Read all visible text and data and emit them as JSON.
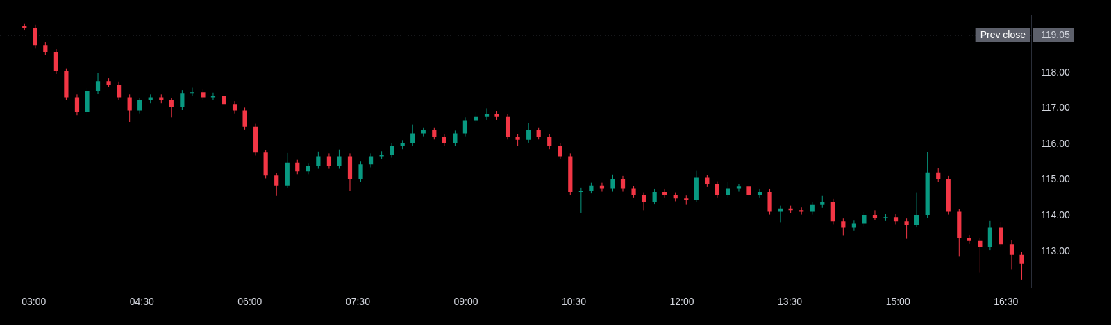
{
  "chart_data": {
    "type": "candlestick",
    "x": [
      2.87,
      3.02,
      3.16,
      3.31,
      3.45,
      3.6,
      3.74,
      3.89,
      4.04,
      4.18,
      4.33,
      4.47,
      4.62,
      4.77,
      4.91,
      5.06,
      5.2,
      5.35,
      5.49,
      5.64,
      5.79,
      5.93,
      6.08,
      6.22,
      6.37,
      6.52,
      6.66,
      6.81,
      6.95,
      7.1,
      7.24,
      7.39,
      7.54,
      7.68,
      7.83,
      7.97,
      8.12,
      8.26,
      8.41,
      8.56,
      8.7,
      8.85,
      8.99,
      9.14,
      9.29,
      9.43,
      9.58,
      9.72,
      9.87,
      10.01,
      10.16,
      10.31,
      10.45,
      10.6,
      10.74,
      10.89,
      11.04,
      11.18,
      11.33,
      11.47,
      11.62,
      11.76,
      11.91,
      12.06,
      12.2,
      12.35,
      12.49,
      12.64,
      12.79,
      12.93,
      13.08,
      13.22,
      13.37,
      13.51,
      13.66,
      13.81,
      13.95,
      14.1,
      14.24,
      14.39,
      14.53,
      14.68,
      14.83,
      14.97,
      15.12,
      15.26,
      15.41,
      15.56,
      15.7,
      15.85,
      15.99,
      16.14,
      16.28,
      16.43,
      16.58,
      16.72
    ],
    "ohlc": [
      [
        119.3,
        119.38,
        119.18,
        119.26
      ],
      [
        119.26,
        119.34,
        118.69,
        118.77
      ],
      [
        118.77,
        118.85,
        118.5,
        118.58
      ],
      [
        118.58,
        118.66,
        117.96,
        118.04
      ],
      [
        118.04,
        118.12,
        117.23,
        117.31
      ],
      [
        117.31,
        117.39,
        116.81,
        116.89
      ],
      [
        116.89,
        117.57,
        116.81,
        117.49
      ],
      [
        117.49,
        117.98,
        117.41,
        117.76
      ],
      [
        117.76,
        117.84,
        117.59,
        117.67
      ],
      [
        117.67,
        117.75,
        117.23,
        117.31
      ],
      [
        117.31,
        117.39,
        116.62,
        116.94
      ],
      [
        116.94,
        117.3,
        116.86,
        117.22
      ],
      [
        117.22,
        117.39,
        117.14,
        117.31
      ],
      [
        117.31,
        117.39,
        117.14,
        117.22
      ],
      [
        117.22,
        117.3,
        116.75,
        117.03
      ],
      [
        117.03,
        117.51,
        116.95,
        117.43
      ],
      [
        117.43,
        117.58,
        117.35,
        117.45
      ],
      [
        117.45,
        117.53,
        117.23,
        117.31
      ],
      [
        117.31,
        117.44,
        117.23,
        117.36
      ],
      [
        117.36,
        117.44,
        117.04,
        117.12
      ],
      [
        117.12,
        117.2,
        116.86,
        116.94
      ],
      [
        116.94,
        117.02,
        116.41,
        116.49
      ],
      [
        116.49,
        116.57,
        115.68,
        115.76
      ],
      [
        115.76,
        115.84,
        115.04,
        115.12
      ],
      [
        115.12,
        115.2,
        114.55,
        114.84
      ],
      [
        114.84,
        115.75,
        114.76,
        115.48
      ],
      [
        115.48,
        115.56,
        115.16,
        115.24
      ],
      [
        115.24,
        115.47,
        115.16,
        115.39
      ],
      [
        115.39,
        115.79,
        115.31,
        115.66
      ],
      [
        115.66,
        115.74,
        115.31,
        115.39
      ],
      [
        115.39,
        115.85,
        115.31,
        115.66
      ],
      [
        115.66,
        115.74,
        114.7,
        115.03
      ],
      [
        115.03,
        115.51,
        114.95,
        115.43
      ],
      [
        115.43,
        115.74,
        115.35,
        115.66
      ],
      [
        115.66,
        115.8,
        115.58,
        115.7
      ],
      [
        115.7,
        116.02,
        115.62,
        115.94
      ],
      [
        115.94,
        116.11,
        115.86,
        116.03
      ],
      [
        116.03,
        116.55,
        115.95,
        116.3
      ],
      [
        116.3,
        116.47,
        116.22,
        116.39
      ],
      [
        116.39,
        116.47,
        116.13,
        116.21
      ],
      [
        116.21,
        116.29,
        115.95,
        116.03
      ],
      [
        116.03,
        116.38,
        115.95,
        116.3
      ],
      [
        116.3,
        116.75,
        116.22,
        116.67
      ],
      [
        116.67,
        116.9,
        116.59,
        116.76
      ],
      [
        116.76,
        117.0,
        116.68,
        116.85
      ],
      [
        116.85,
        116.93,
        116.68,
        116.76
      ],
      [
        116.76,
        116.84,
        116.13,
        116.21
      ],
      [
        116.21,
        116.29,
        115.95,
        116.12
      ],
      [
        116.12,
        116.6,
        116.04,
        116.39
      ],
      [
        116.39,
        116.47,
        116.13,
        116.21
      ],
      [
        116.21,
        116.29,
        115.86,
        115.94
      ],
      [
        115.94,
        116.02,
        115.58,
        115.66
      ],
      [
        115.66,
        115.74,
        114.58,
        114.66
      ],
      [
        114.66,
        114.78,
        114.08,
        114.7
      ],
      [
        114.7,
        114.92,
        114.62,
        114.84
      ],
      [
        114.84,
        114.92,
        114.67,
        114.75
      ],
      [
        114.75,
        115.15,
        114.67,
        115.03
      ],
      [
        115.03,
        115.11,
        114.67,
        114.75
      ],
      [
        114.75,
        114.83,
        114.49,
        114.57
      ],
      [
        114.57,
        114.65,
        114.15,
        114.39
      ],
      [
        114.39,
        114.74,
        114.31,
        114.66
      ],
      [
        114.66,
        114.74,
        114.49,
        114.57
      ],
      [
        114.57,
        114.65,
        114.4,
        114.48
      ],
      [
        114.48,
        114.56,
        114.3,
        114.45
      ],
      [
        114.45,
        115.25,
        114.37,
        115.06
      ],
      [
        115.06,
        115.14,
        114.8,
        114.88
      ],
      [
        114.88,
        114.96,
        114.49,
        114.57
      ],
      [
        114.57,
        114.95,
        114.49,
        114.75
      ],
      [
        114.75,
        114.89,
        114.67,
        114.81
      ],
      [
        114.81,
        114.89,
        114.49,
        114.57
      ],
      [
        114.57,
        114.74,
        114.49,
        114.66
      ],
      [
        114.66,
        114.74,
        114.03,
        114.11
      ],
      [
        114.11,
        114.28,
        113.8,
        114.2
      ],
      [
        114.2,
        114.28,
        114.07,
        114.15
      ],
      [
        114.15,
        114.23,
        114.03,
        114.11
      ],
      [
        114.11,
        114.38,
        114.03,
        114.3
      ],
      [
        114.3,
        114.55,
        114.22,
        114.39
      ],
      [
        114.39,
        114.47,
        113.76,
        113.84
      ],
      [
        113.84,
        113.92,
        113.45,
        113.66
      ],
      [
        113.66,
        113.86,
        113.58,
        113.78
      ],
      [
        113.78,
        114.1,
        113.7,
        114.02
      ],
      [
        114.02,
        114.15,
        113.88,
        113.93
      ],
      [
        113.93,
        114.04,
        113.85,
        113.96
      ],
      [
        113.96,
        114.04,
        113.76,
        113.84
      ],
      [
        113.84,
        113.92,
        113.35,
        113.75
      ],
      [
        113.75,
        114.65,
        113.67,
        114.02
      ],
      [
        114.02,
        115.78,
        113.94,
        115.21
      ],
      [
        115.21,
        115.32,
        114.95,
        115.03
      ],
      [
        115.03,
        115.11,
        114.03,
        114.11
      ],
      [
        114.11,
        114.19,
        112.85,
        113.38
      ],
      [
        113.38,
        113.46,
        113.21,
        113.29
      ],
      [
        113.29,
        113.37,
        112.4,
        113.11
      ],
      [
        113.11,
        113.85,
        113.03,
        113.66
      ],
      [
        113.66,
        113.82,
        113.12,
        113.2
      ],
      [
        113.2,
        113.32,
        112.5,
        112.9
      ],
      [
        112.9,
        112.98,
        112.2,
        112.65
      ]
    ],
    "colors": [
      "#f23645",
      "#f23645",
      "#f23645",
      "#f23645",
      "#f23645",
      "#f23645",
      "#089981",
      "#089981",
      "#f23645",
      "#f23645",
      "#f23645",
      "#089981",
      "#089981",
      "#f23645",
      "#f23645",
      "#089981",
      "#089981",
      "#f23645",
      "#089981",
      "#f23645",
      "#f23645",
      "#f23645",
      "#f23645",
      "#f23645",
      "#f23645",
      "#089981",
      "#f23645",
      "#089981",
      "#089981",
      "#f23645",
      "#089981",
      "#f23645",
      "#089981",
      "#089981",
      "#089981",
      "#089981",
      "#089981",
      "#089981",
      "#089981",
      "#f23645",
      "#f23645",
      "#089981",
      "#089981",
      "#089981",
      "#089981",
      "#f23645",
      "#f23645",
      "#f23645",
      "#089981",
      "#f23645",
      "#f23645",
      "#f23645",
      "#f23645",
      "#089981",
      "#089981",
      "#f23645",
      "#089981",
      "#f23645",
      "#f23645",
      "#f23645",
      "#089981",
      "#f23645",
      "#f23645",
      "#f23645",
      "#089981",
      "#f23645",
      "#f23645",
      "#089981",
      "#089981",
      "#f23645",
      "#089981",
      "#f23645",
      "#089981",
      "#f23645",
      "#f23645",
      "#089981",
      "#089981",
      "#f23645",
      "#f23645",
      "#089981",
      "#089981",
      "#f23645",
      "#089981",
      "#f23645",
      "#f23645",
      "#089981",
      "#089981",
      "#f23645",
      "#f23645",
      "#f23645",
      "#f23645",
      "#f23645",
      "#089981",
      "#f23645",
      "#f23645",
      "#f23645"
    ],
    "xlim": [
      2.53,
      16.85
    ],
    "xticks": [
      {
        "value": 3,
        "label": "03:00"
      },
      {
        "value": 4.5,
        "label": "04:30"
      },
      {
        "value": 6,
        "label": "06:00"
      },
      {
        "value": 7.5,
        "label": "07:30"
      },
      {
        "value": 9,
        "label": "09:00"
      },
      {
        "value": 10.5,
        "label": "10:30"
      },
      {
        "value": 12,
        "label": "12:00"
      },
      {
        "value": 13.5,
        "label": "13:30"
      },
      {
        "value": 15,
        "label": "15:00"
      },
      {
        "value": 16.5,
        "label": "16:30"
      }
    ],
    "ylim": [
      112.0,
      119.6
    ],
    "yticks": [
      {
        "value": 113,
        "label": "113.00"
      },
      {
        "value": 114,
        "label": "114.00"
      },
      {
        "value": 115,
        "label": "115.00"
      },
      {
        "value": 116,
        "label": "116.00"
      },
      {
        "value": 117,
        "label": "117.00"
      },
      {
        "value": 118,
        "label": "118.00"
      },
      {
        "value": 119.05,
        "label": "119.05"
      }
    ],
    "ref_lines": [
      {
        "axis": "y",
        "value": 119.05,
        "label": "Prev close",
        "color": "#5d606b",
        "line_style": "dotted"
      }
    ],
    "grid": false,
    "legend": false
  }
}
